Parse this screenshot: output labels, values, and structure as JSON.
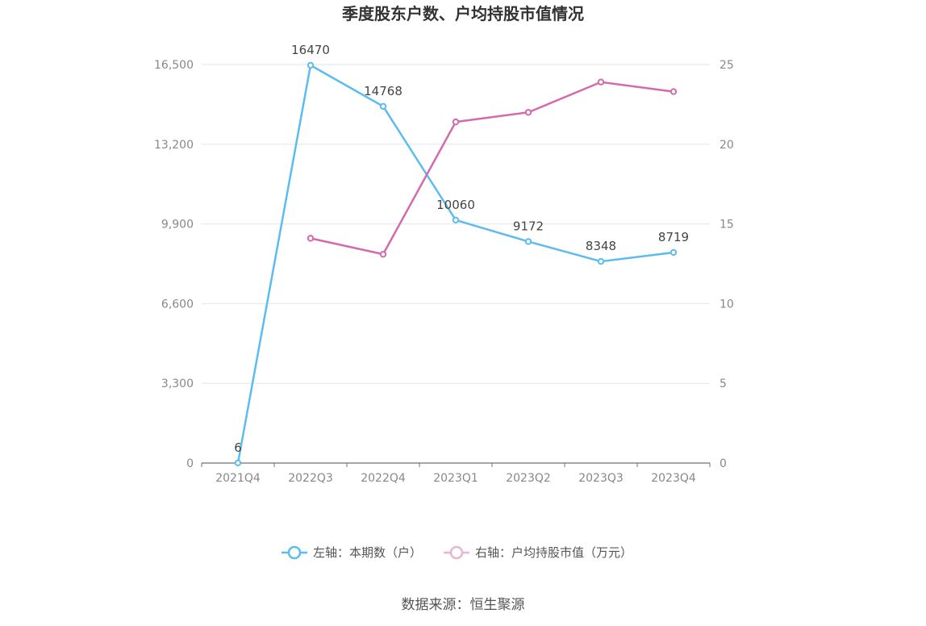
{
  "chart_data": {
    "type": "line",
    "title": "季度股东户数、户均持股市值情况",
    "categories": [
      "2021Q4",
      "2022Q3",
      "2022Q4",
      "2023Q1",
      "2023Q2",
      "2023Q3",
      "2023Q4"
    ],
    "y_left": {
      "ticks": [
        "0",
        "3,300",
        "6,600",
        "9,900",
        "13,200",
        "16,500"
      ],
      "ylim": [
        0,
        16500
      ]
    },
    "y_right": {
      "ticks": [
        "0",
        "5",
        "10",
        "15",
        "20",
        "25"
      ],
      "ylim": [
        0,
        25
      ]
    },
    "series": [
      {
        "name": "左轴：本期数（户）",
        "axis": "left",
        "color": "#5bbcf0",
        "values": [
          6,
          16470,
          14768,
          10060,
          9172,
          8348,
          8719
        ],
        "labels": [
          "6",
          "16470",
          "14768",
          "10060",
          "9172",
          "8348",
          "8719"
        ]
      },
      {
        "name": "右轴：户均持股市值（万元）",
        "axis": "right",
        "color": "#d36aae",
        "values": [
          null,
          14.1,
          13.1,
          21.4,
          22.0,
          23.9,
          23.3
        ]
      }
    ],
    "grid": true,
    "legend_position": "bottom-center"
  },
  "source": "数据来源：恒生聚源"
}
